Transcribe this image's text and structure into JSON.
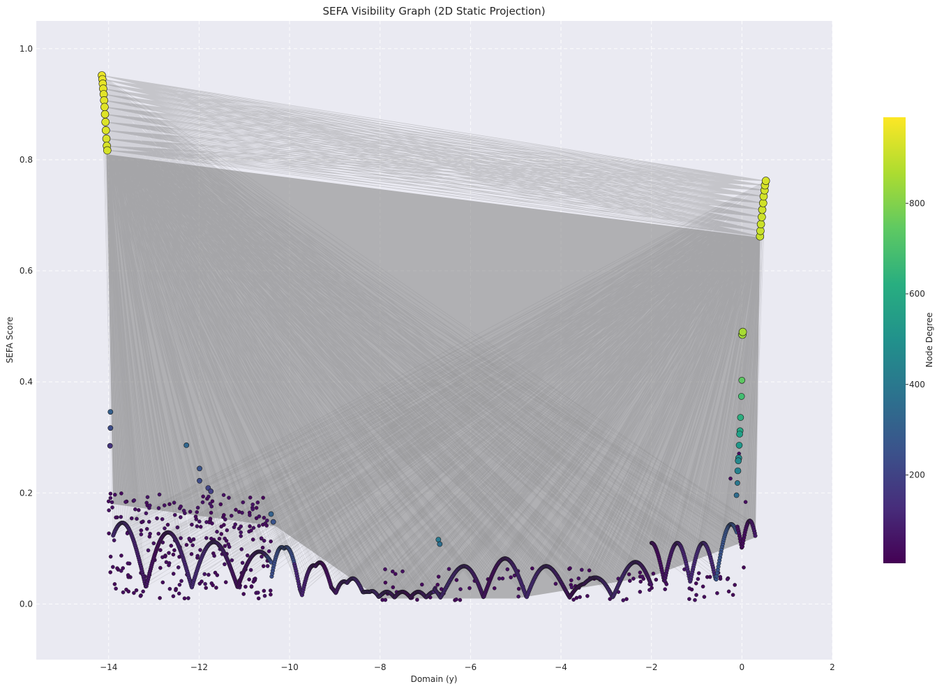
{
  "chart_data": {
    "type": "scatter",
    "title": "SEFA Visibility Graph (2D Static Projection)",
    "xlabel": "Domain (y)",
    "ylabel": "SEFA Score",
    "xlim": [
      -15.6,
      2.0
    ],
    "ylim": [
      -0.1,
      1.05
    ],
    "xticks": [
      -14,
      -12,
      -10,
      -8,
      -6,
      -4,
      -2,
      0,
      2
    ],
    "yticks": [
      0.0,
      0.2,
      0.4,
      0.6,
      0.8,
      1.0
    ],
    "xtick_labels": [
      "−14",
      "−12",
      "−10",
      "−8",
      "−6",
      "−4",
      "−2",
      "0",
      "2"
    ],
    "ytick_labels": [
      "0.0",
      "0.2",
      "0.4",
      "0.6",
      "0.8",
      "1.0"
    ],
    "grid": true,
    "colorbar": {
      "label": "Node Degree",
      "colormap": "viridis",
      "range": [
        5,
        990
      ],
      "ticks": [
        200,
        400,
        600,
        800
      ],
      "tick_labels": [
        "200",
        "400",
        "600",
        "800"
      ]
    },
    "edge_color": "#808080",
    "series": [
      {
        "points": [
          {
            "x": -14.15,
            "y": 0.952,
            "degree": 960
          },
          {
            "x": -14.14,
            "y": 0.945,
            "degree": 958
          },
          {
            "x": -14.13,
            "y": 0.937,
            "degree": 955
          },
          {
            "x": -14.12,
            "y": 0.928,
            "degree": 953
          },
          {
            "x": -14.11,
            "y": 0.918,
            "degree": 950
          },
          {
            "x": -14.1,
            "y": 0.907,
            "degree": 948
          },
          {
            "x": -14.09,
            "y": 0.895,
            "degree": 945
          },
          {
            "x": -14.08,
            "y": 0.882,
            "degree": 943
          },
          {
            "x": -14.07,
            "y": 0.868,
            "degree": 940
          },
          {
            "x": -14.06,
            "y": 0.853,
            "degree": 938
          },
          {
            "x": -14.05,
            "y": 0.838,
            "degree": 935
          },
          {
            "x": -14.04,
            "y": 0.825,
            "degree": 933
          },
          {
            "x": -14.03,
            "y": 0.817,
            "degree": 930
          },
          {
            "x": 0.4,
            "y": 0.662,
            "degree": 910
          },
          {
            "x": 0.41,
            "y": 0.672,
            "degree": 912
          },
          {
            "x": 0.42,
            "y": 0.684,
            "degree": 915
          },
          {
            "x": 0.44,
            "y": 0.697,
            "degree": 918
          },
          {
            "x": 0.45,
            "y": 0.71,
            "degree": 920
          },
          {
            "x": 0.47,
            "y": 0.722,
            "degree": 923
          },
          {
            "x": 0.48,
            "y": 0.734,
            "degree": 925
          },
          {
            "x": 0.5,
            "y": 0.745,
            "degree": 928
          },
          {
            "x": 0.51,
            "y": 0.754,
            "degree": 930
          },
          {
            "x": 0.53,
            "y": 0.762,
            "degree": 932
          },
          {
            "x": 0.01,
            "y": 0.485,
            "degree": 850
          },
          {
            "x": 0.02,
            "y": 0.49,
            "degree": 860
          },
          {
            "x": 0.0,
            "y": 0.403,
            "degree": 740
          },
          {
            "x": -0.01,
            "y": 0.374,
            "degree": 690
          },
          {
            "x": -0.03,
            "y": 0.336,
            "degree": 620
          },
          {
            "x": -0.04,
            "y": 0.312,
            "degree": 590
          },
          {
            "x": -0.05,
            "y": 0.306,
            "degree": 560
          },
          {
            "x": -0.06,
            "y": 0.286,
            "degree": 530
          },
          {
            "x": -0.07,
            "y": 0.263,
            "degree": 490
          },
          {
            "x": -0.08,
            "y": 0.258,
            "degree": 470
          },
          {
            "x": -0.09,
            "y": 0.24,
            "degree": 440
          },
          {
            "x": -0.1,
            "y": 0.218,
            "degree": 400
          },
          {
            "x": -0.12,
            "y": 0.196,
            "degree": 350
          },
          {
            "x": -13.96,
            "y": 0.346,
            "degree": 300
          },
          {
            "x": -13.96,
            "y": 0.317,
            "degree": 230
          },
          {
            "x": -13.97,
            "y": 0.285,
            "degree": 150
          },
          {
            "x": -12.28,
            "y": 0.286,
            "degree": 330
          },
          {
            "x": -11.99,
            "y": 0.244,
            "degree": 260
          },
          {
            "x": -11.99,
            "y": 0.222,
            "degree": 230
          },
          {
            "x": -11.8,
            "y": 0.209,
            "degree": 200
          },
          {
            "x": -11.74,
            "y": 0.203,
            "degree": 190
          },
          {
            "x": -10.41,
            "y": 0.162,
            "degree": 310
          },
          {
            "x": -10.36,
            "y": 0.148,
            "degree": 260
          },
          {
            "x": -6.71,
            "y": 0.116,
            "degree": 400
          },
          {
            "x": -6.68,
            "y": 0.108,
            "degree": 360
          }
        ]
      }
    ]
  }
}
